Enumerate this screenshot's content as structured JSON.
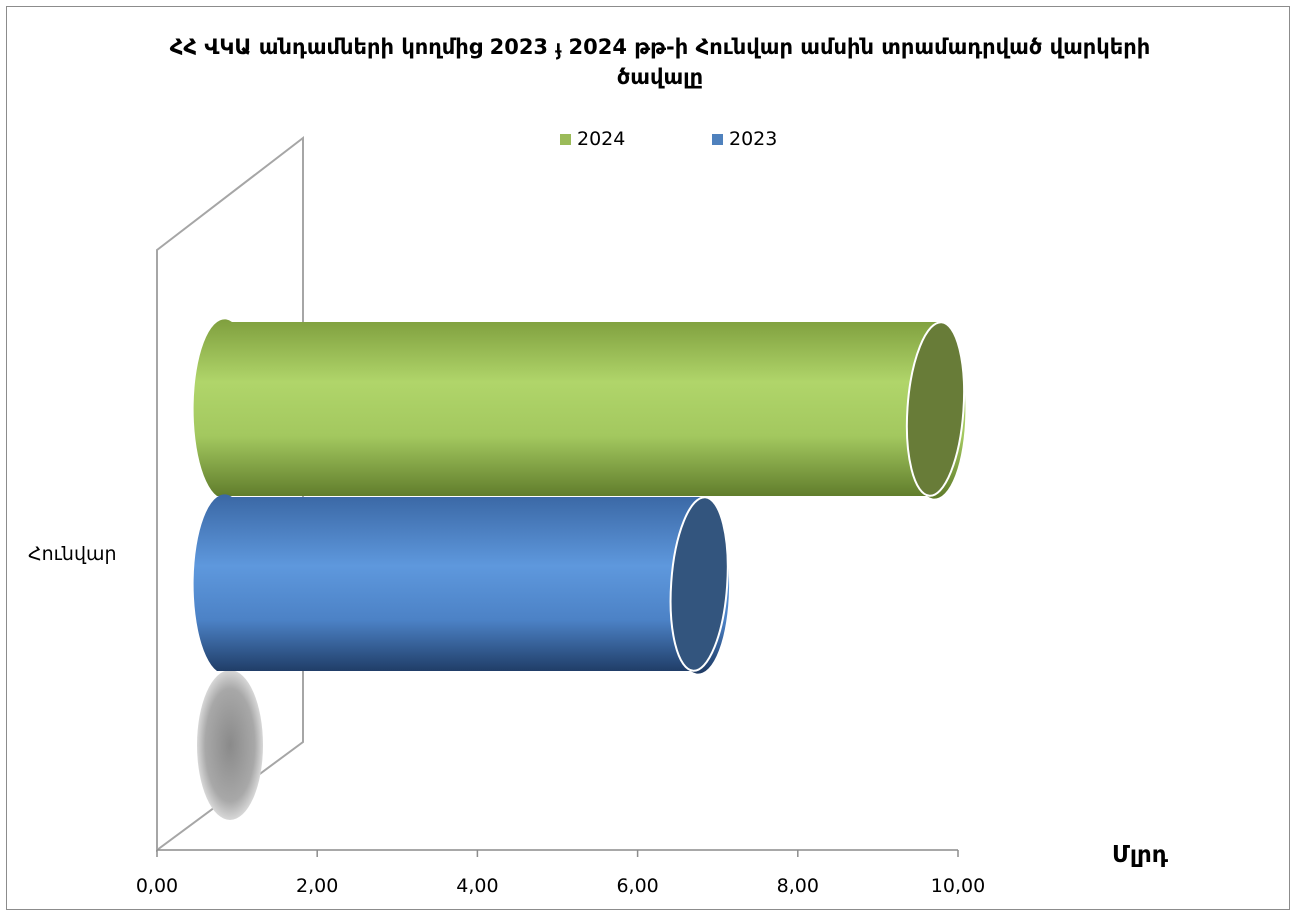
{
  "chart_data": {
    "type": "bar",
    "orientation": "horizontal",
    "style": "3d-cylinder",
    "title": "ՀՀ ՎԿԱ անդամների կողմից 2023 ֈ 2024 թթ-ի Հունվար ամսին տրամադրված վարկերի ծավալը",
    "categories": [
      "Հունվար"
    ],
    "series": [
      {
        "name": "2024",
        "values": [
          9.8
        ],
        "color": "#9bbb59"
      },
      {
        "name": "2023",
        "values": [
          6.85
        ],
        "color": "#4f81bd"
      }
    ],
    "xlim": [
      0,
      10
    ],
    "xticks": [
      "0,00",
      "2,00",
      "4,00",
      "6,00",
      "8,00",
      "10,00"
    ],
    "xlabel": "Մլրդ",
    "ylabel": "",
    "legend_position": "top",
    "grid": false
  }
}
